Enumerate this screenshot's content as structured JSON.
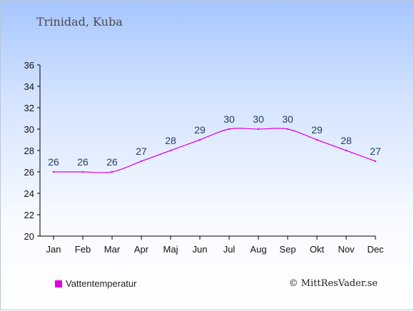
{
  "title": "Trinidad, Kuba",
  "credit": "© MittResVader.se",
  "chart_data": {
    "type": "line",
    "categories": [
      "Jan",
      "Feb",
      "Mar",
      "Apr",
      "Maj",
      "Jun",
      "Jul",
      "Aug",
      "Sep",
      "Okt",
      "Nov",
      "Dec"
    ],
    "series": [
      {
        "name": "Vattentemperatur",
        "values": [
          26,
          26,
          26,
          27,
          28,
          29,
          30,
          30,
          30,
          29,
          28,
          27
        ]
      }
    ],
    "ylim": [
      20,
      36
    ],
    "yticks": [
      20,
      22,
      24,
      26,
      28,
      30,
      32,
      34,
      36
    ],
    "legend_position": "bottom-left",
    "grid": false,
    "line_color": "#e100e1"
  }
}
